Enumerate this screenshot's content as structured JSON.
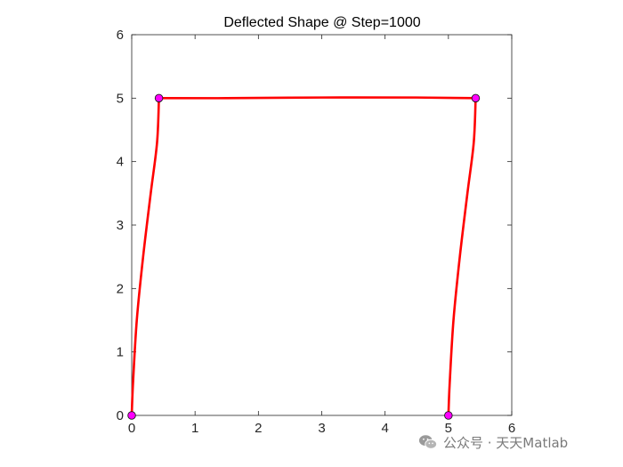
{
  "chart_data": {
    "type": "line",
    "title": "Deflected Shape @ Step=1000",
    "xlabel": "",
    "ylabel": "",
    "xlim": [
      0,
      6
    ],
    "ylim": [
      0,
      6
    ],
    "xticks": [
      "0",
      "1",
      "2",
      "3",
      "4",
      "5",
      "6"
    ],
    "yticks": [
      "0",
      "1",
      "2",
      "3",
      "4",
      "5",
      "6"
    ],
    "grid": false,
    "line_color": "#ff0000",
    "node_color": "#ff00ff",
    "series": [
      {
        "values": [
          [
            0,
            0
          ],
          [
            0.02,
            0.5
          ],
          [
            0.08,
            1.5
          ],
          [
            0.18,
            2.5
          ],
          [
            0.3,
            3.5
          ],
          [
            0.4,
            4.3
          ],
          [
            0.43,
            5.0
          ]
        ]
      },
      {
        "values": [
          [
            0.43,
            5.0
          ],
          [
            1.5,
            5.0
          ],
          [
            3.0,
            5.01
          ],
          [
            4.5,
            5.01
          ],
          [
            5.43,
            5.0
          ]
        ]
      },
      {
        "values": [
          [
            5.0,
            0
          ],
          [
            5.02,
            0.5
          ],
          [
            5.08,
            1.5
          ],
          [
            5.18,
            2.5
          ],
          [
            5.3,
            3.5
          ],
          [
            5.4,
            4.3
          ],
          [
            5.43,
            5.0
          ]
        ]
      }
    ],
    "nodes": [
      [
        0,
        0
      ],
      [
        0.43,
        5.0
      ],
      [
        5.0,
        0
      ],
      [
        5.43,
        5.0
      ]
    ]
  },
  "watermark": {
    "text": "公众号 · 天天Matlab",
    "icon": "wechat-icon"
  }
}
